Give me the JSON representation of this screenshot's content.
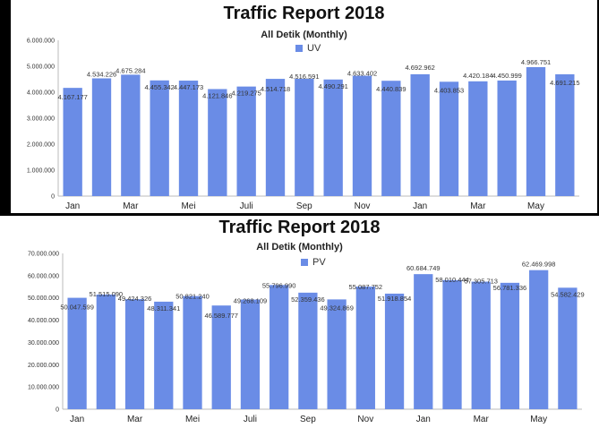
{
  "chart_data": [
    {
      "type": "bar",
      "title": "Traffic Report 2018",
      "subtitle": "All Detik (Monthly)",
      "legend": "UV",
      "legend_position": "top-center",
      "color": "#6a8ce6",
      "grid": false,
      "ylim": [
        0,
        6000000
      ],
      "y_ticks": [
        "0",
        "1.000.000",
        "2.000.000",
        "3.000.000",
        "4.000.000",
        "5.000.000",
        "6.000.000"
      ],
      "x_tick_labels": [
        "Jan",
        "Mar",
        "Mei",
        "Juli",
        "Sep",
        "Nov",
        "Jan",
        "Mar",
        "May"
      ],
      "series": [
        {
          "name": "UV",
          "values": [
            4167177,
            4534226,
            4675284,
            4455342,
            4447173,
            4121846,
            4219275,
            4514718,
            4516591,
            4490291,
            4633402,
            4440839,
            4692962,
            4403853,
            4420184,
            4450999,
            4966751,
            4691215
          ],
          "labels": [
            "4.167.177",
            "4.534.226",
            "4.675.284",
            "4.455.342",
            "4.447.173",
            "4.121.846",
            "4.219.275",
            "4.514.718",
            "4.516.591",
            "4.490.291",
            "4.633.402",
            "4.440.839",
            "4.692.962",
            "4.403.853",
            "4.420.184",
            "4.450.999",
            "4.966.751",
            "4.691.215"
          ]
        }
      ]
    },
    {
      "type": "bar",
      "title": "Traffic Report 2018",
      "subtitle": "All Detik (Monthly)",
      "legend": "PV",
      "legend_position": "top-center",
      "color": "#6a8ce6",
      "grid": false,
      "ylim": [
        0,
        70000000
      ],
      "y_ticks": [
        "0",
        "10.000.000",
        "20.000.000",
        "30.000.000",
        "40.000.000",
        "50.000.000",
        "60.000.000",
        "70.000.000"
      ],
      "x_tick_labels": [
        "Jan",
        "Mar",
        "Mei",
        "Juli",
        "Sep",
        "Nov",
        "Jan",
        "Mar",
        "May"
      ],
      "series": [
        {
          "name": "PV",
          "values": [
            50047599,
            51515090,
            49424326,
            48311341,
            50821240,
            46589777,
            49268109,
            55796990,
            52359436,
            49324869,
            55087752,
            51918854,
            60684749,
            58010444,
            57305713,
            56781336,
            62469998,
            54582429
          ],
          "labels": [
            "50.047.599",
            "51.515.090",
            "49.424.326",
            "48.311.341",
            "50.821.240",
            "46.589.777",
            "49.268.109",
            "55.796.990",
            "52.359.436",
            "49.324.869",
            "55.087.752",
            "51.918.854",
            "60.684.749",
            "58.010.444",
            "57.305.713",
            "56.781.336",
            "62.469.998",
            "54.582.429"
          ]
        }
      ]
    }
  ]
}
